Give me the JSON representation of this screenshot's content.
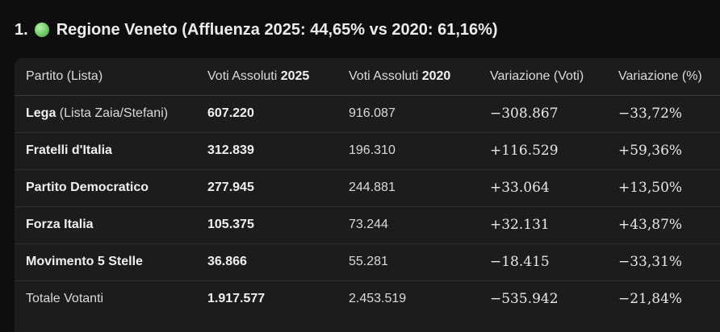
{
  "section": {
    "number": "1.",
    "icon": "green-circle",
    "title": "Regione Veneto (Affluenza 2025: 44,65% vs 2020: 61,16%)"
  },
  "table": {
    "headers": {
      "party": "Partito (Lista)",
      "votes2025_prefix": "Voti Assoluti ",
      "votes2025_year": "2025",
      "votes2020_prefix": "Voti Assoluti ",
      "votes2020_year": "2020",
      "change_votes": "Variazione (Voti)",
      "change_pct": "Variazione (%)"
    },
    "rows": [
      {
        "party": "Lega",
        "party_note": " (Lista Zaia/Stefani)",
        "v2025": "607.220",
        "v2020": "916.087",
        "diff": "−308.867",
        "pct": "−33,72%"
      },
      {
        "party": "Fratelli d'Italia",
        "party_note": "",
        "v2025": "312.839",
        "v2020": "196.310",
        "diff": "+116.529",
        "pct": "+59,36%"
      },
      {
        "party": "Partito Democratico",
        "party_note": "",
        "v2025": "277.945",
        "v2020": "244.881",
        "diff": "+33.064",
        "pct": "+13,50%"
      },
      {
        "party": "Forza Italia",
        "party_note": "",
        "v2025": "105.375",
        "v2020": "73.244",
        "diff": "+32.131",
        "pct": "+43,87%"
      },
      {
        "party": "Movimento 5 Stelle",
        "party_note": "",
        "v2025": "36.866",
        "v2020": "55.281",
        "diff": "−18.415",
        "pct": "−33,31%"
      }
    ],
    "total": {
      "label": "Totale Votanti",
      "v2025": "1.917.577",
      "v2020": "2.453.519",
      "diff": "−535.942",
      "pct": "−21,84%"
    }
  }
}
